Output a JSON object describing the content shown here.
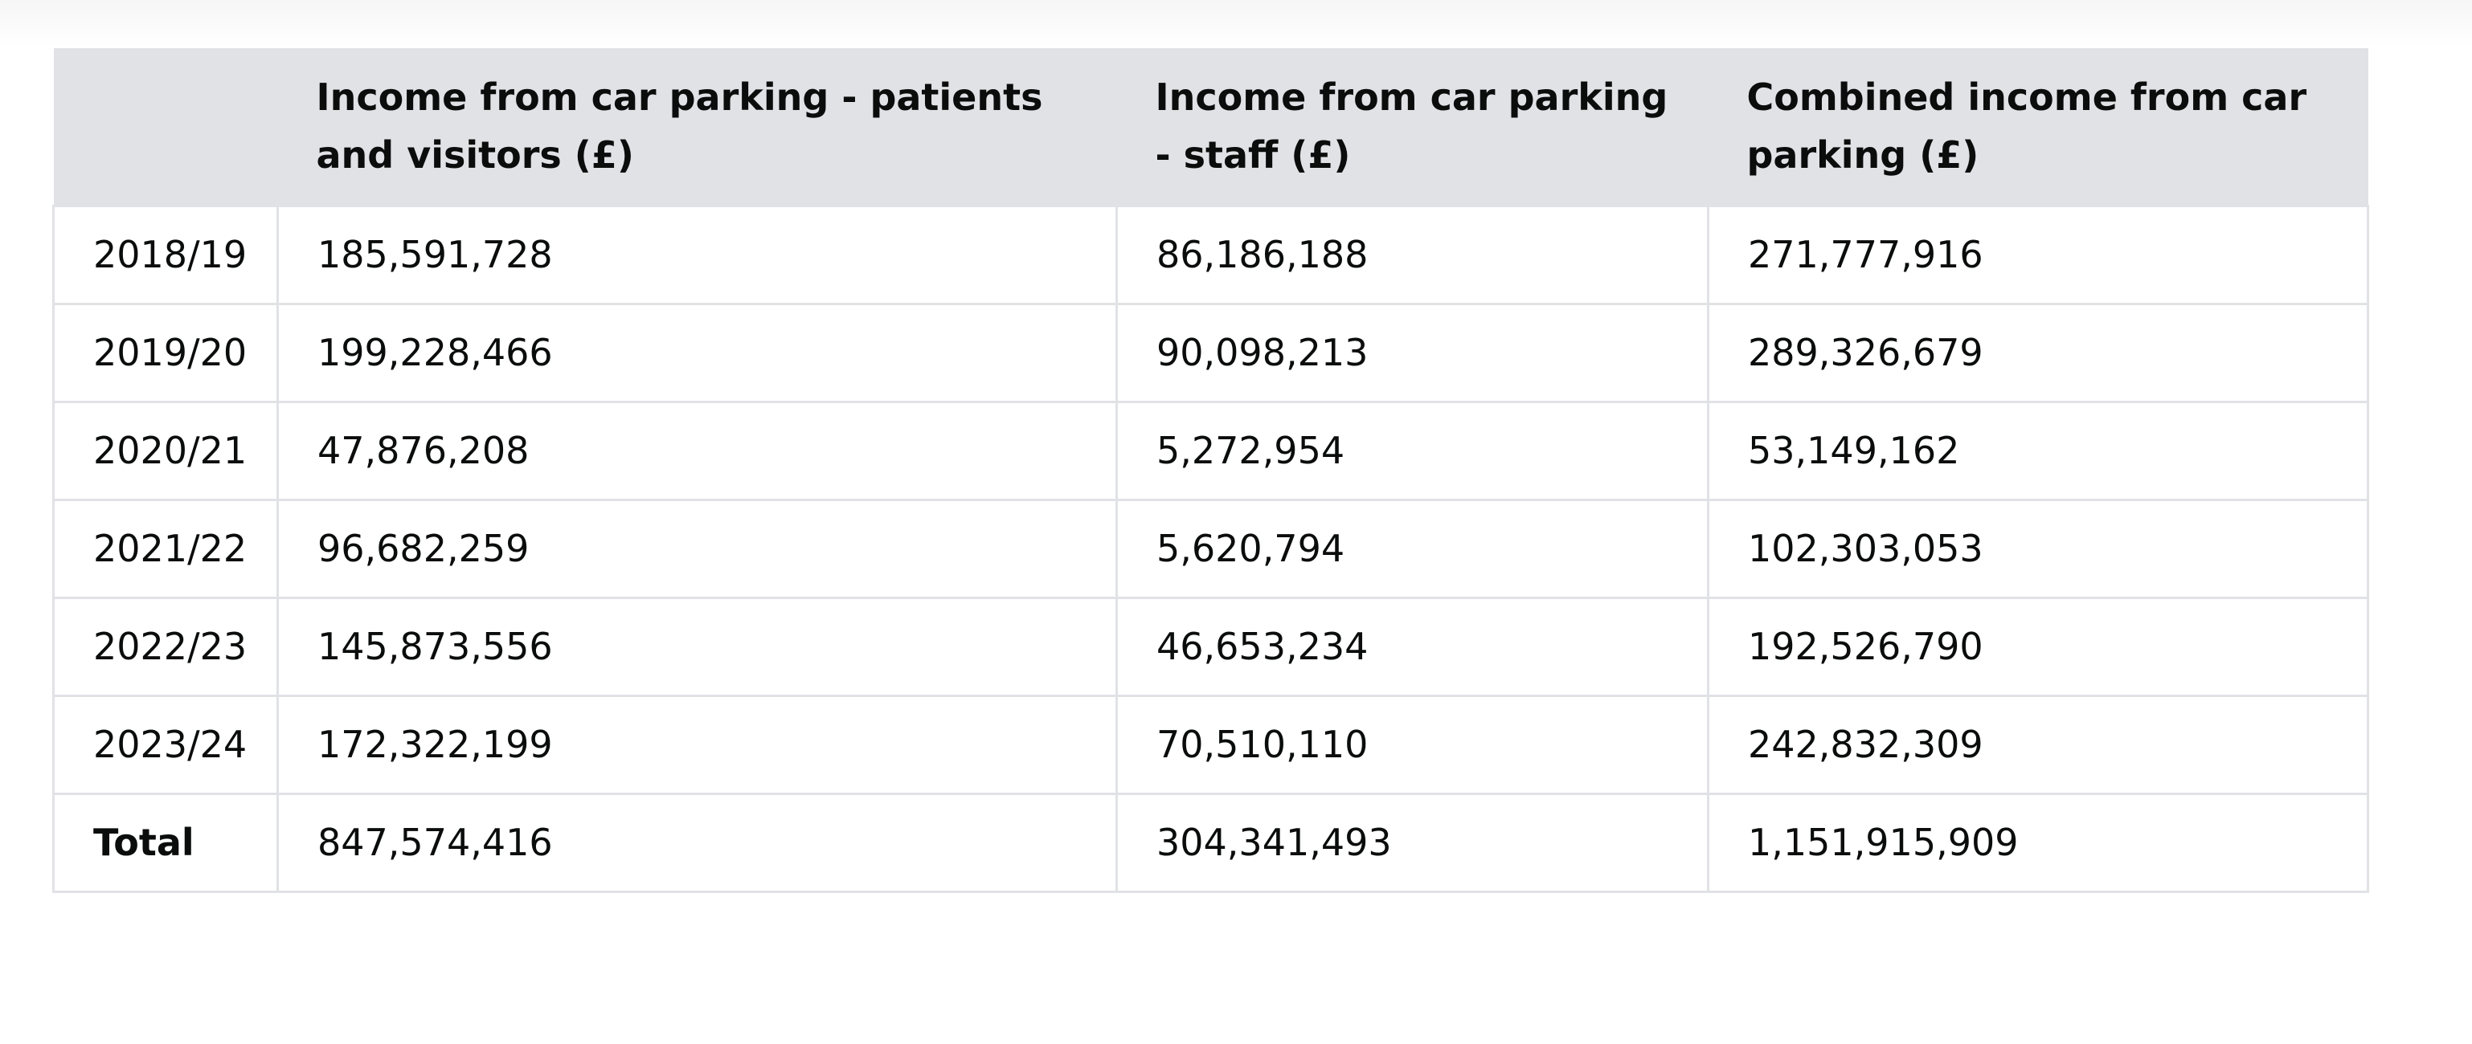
{
  "table": {
    "headers": [
      "",
      "Income from car parking - patients and visitors (£)",
      "Income from car parking - staff (£)",
      "Combined income from car parking (£)"
    ],
    "rows": [
      [
        "2018/19",
        "185,591,728",
        "86,186,188",
        "271,777,916"
      ],
      [
        "2019/20",
        "199,228,466",
        "90,098,213",
        "289,326,679"
      ],
      [
        "2020/21",
        "47,876,208",
        "5,272,954",
        "53,149,162"
      ],
      [
        "2021/22",
        "96,682,259",
        "5,620,794",
        "102,303,053"
      ],
      [
        "2022/23",
        "145,873,556",
        "46,653,234",
        "192,526,790"
      ],
      [
        "2023/24",
        "172,322,199",
        "70,510,110",
        "242,832,309"
      ],
      [
        "Total",
        "847,574,416",
        "304,341,493",
        "1,151,915,909"
      ]
    ]
  },
  "colors": {
    "header_background": "#e0e2e6",
    "border": "#e1e2e6",
    "text": "#0b0c0c"
  }
}
